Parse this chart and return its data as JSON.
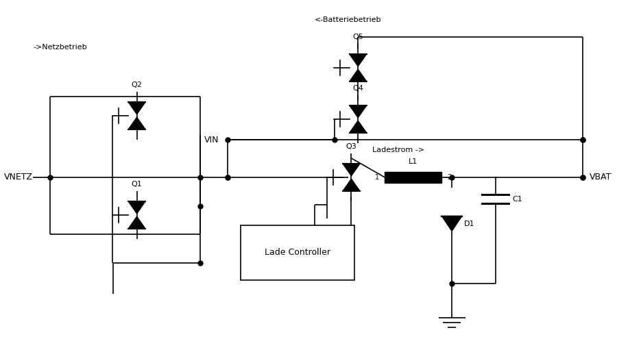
{
  "bg_color": "#ffffff",
  "line_color": "#000000",
  "line_width": 1.2,
  "dot_size": 5,
  "fig_width": 9.0,
  "fig_height": 5.14,
  "labels": {
    "netzbetrieb": "->Netzbetrieb",
    "batteriebetrieb": "<-Batteriebetrieb",
    "vnetz": "VNETZ",
    "vbat": "VBAT",
    "vin": "VIN",
    "q1": "Q1",
    "q2": "Q2",
    "q3": "Q3",
    "q4": "Q4",
    "q5": "Q5",
    "l1": "L1",
    "d1": "D1",
    "c1": "C1",
    "ladestrom": "Ladestrom ->",
    "lade_controller": "Lade Controller"
  }
}
